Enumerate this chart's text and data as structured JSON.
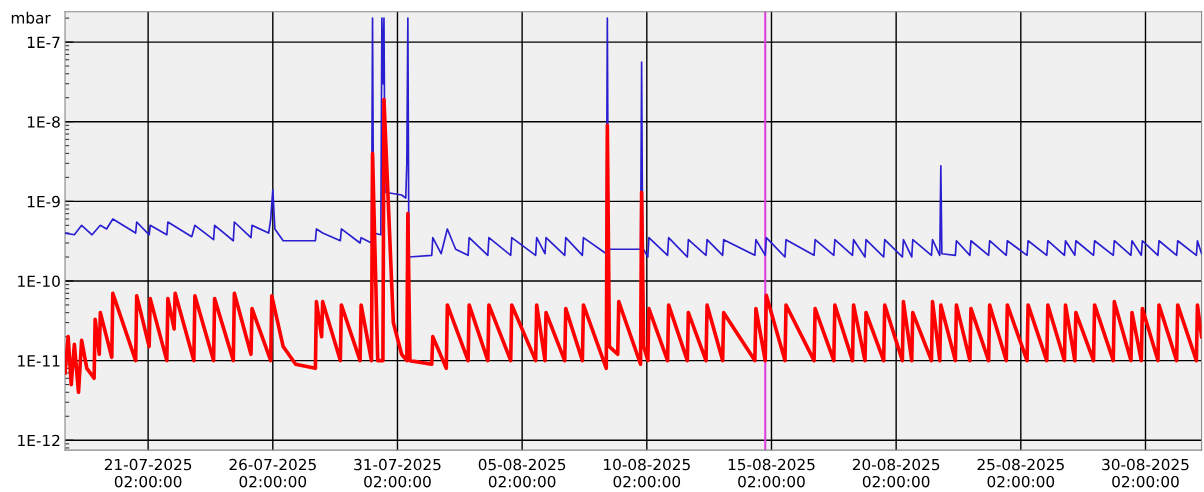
{
  "chart_data": {
    "type": "line",
    "ylabel": "mbar",
    "log": "y",
    "grid": true,
    "line_style": "solid",
    "xlim": [
      "2025-07-17T18:00",
      "2025-09-01T08:00"
    ],
    "xticks": [
      {
        "value": "2025-07-21T02:00",
        "label": "21-07-2025\n02:00:00"
      },
      {
        "value": "2025-07-26T02:00",
        "label": "26-07-2025\n02:00:00"
      },
      {
        "value": "2025-07-31T02:00",
        "label": "31-07-2025\n02:00:00"
      },
      {
        "value": "2025-08-05T02:00",
        "label": "05-08-2025\n02:00:00"
      },
      {
        "value": "2025-08-10T02:00",
        "label": "10-08-2025\n02:00:00"
      },
      {
        "value": "2025-08-15T02:00",
        "label": "15-08-2025\n02:00:00"
      },
      {
        "value": "2025-08-20T02:00",
        "label": "20-08-2025\n02:00:00"
      },
      {
        "value": "2025-08-25T02:00",
        "label": "25-08-2025\n02:00:00"
      },
      {
        "value": "2025-08-30T02:00",
        "label": "30-08-2025\n02:00:00"
      }
    ],
    "ylim": [
      7.5e-13,
      2.4e-07
    ],
    "yticks": [
      {
        "value": 1e-12,
        "label": "1E-12"
      },
      {
        "value": 1e-11,
        "label": "1E-11"
      },
      {
        "value": 1e-10,
        "label": "1E-10"
      },
      {
        "value": 1e-09,
        "label": "1E-9"
      },
      {
        "value": 1e-08,
        "label": "1E-8"
      },
      {
        "value": 1e-07,
        "label": "1E-7"
      }
    ],
    "ref_lines": [
      {
        "axis": "x",
        "value": "2025-08-14T20:00",
        "color": "#e040e0"
      }
    ],
    "series": [
      {
        "color": "#2a1fd0",
        "x": [
          "2025-07-17T18:00",
          "2025-07-18T03:00",
          "2025-07-18T10:00",
          "2025-07-18T20:00",
          "2025-07-19T04:00",
          "2025-07-19T10:00",
          "2025-07-19T16:00",
          "2025-07-20T14:00",
          "2025-07-20T15:00",
          "2025-07-21T03:00",
          "2025-07-21T04:00",
          "2025-07-21T20:00",
          "2025-07-21T21:00",
          "2025-07-22T20:00",
          "2025-07-22T23:00",
          "2025-07-23T17:00",
          "2025-07-23T18:00",
          "2025-07-24T12:00",
          "2025-07-24T13:00",
          "2025-07-25T05:00",
          "2025-07-25T06:00",
          "2025-07-25T22:00",
          "2025-07-26T00:00",
          "2025-07-26T02:00",
          "2025-07-26T04:00",
          "2025-07-26T12:00",
          "2025-07-27T19:00",
          "2025-07-27T20:00",
          "2025-07-28T02:00",
          "2025-07-28T19:00",
          "2025-07-28T20:00",
          "2025-07-29T14:00",
          "2025-07-29T15:00",
          "2025-07-30T01:00",
          "2025-07-30T02:00",
          "2025-07-30T03:00",
          "2025-07-30T10:00",
          "2025-07-30T11:00",
          "2025-07-30T12:00",
          "2025-07-30T13:00",
          "2025-07-30T14:00",
          "2025-07-31T06:00",
          "2025-07-31T10:00",
          "2025-07-31T11:00",
          "2025-07-31T12:00",
          "2025-07-31T13:00",
          "2025-08-01T11:00",
          "2025-08-01T12:00",
          "2025-08-01T20:00",
          "2025-08-02T02:00",
          "2025-08-02T10:00",
          "2025-08-02T22:00",
          "2025-08-02T23:00",
          "2025-08-03T17:00",
          "2025-08-03T18:00",
          "2025-08-04T15:00",
          "2025-08-04T16:00",
          "2025-08-05T15:00",
          "2025-08-05T16:00",
          "2025-08-06T00:00",
          "2025-08-06T01:00",
          "2025-08-06T19:00",
          "2025-08-06T20:00",
          "2025-08-07T12:00",
          "2025-08-07T13:00",
          "2025-08-08T11:00",
          "2025-08-08T12:00",
          "2025-08-08T13:00",
          "2025-08-08T23:00",
          "2025-08-09T20:00",
          "2025-08-09T21:00",
          "2025-08-09T22:00",
          "2025-08-10T03:00",
          "2025-08-10T04:00",
          "2025-08-10T22:00",
          "2025-08-10T23:00",
          "2025-08-11T17:00",
          "2025-08-11T18:00",
          "2025-08-12T11:00",
          "2025-08-12T12:00",
          "2025-08-13T03:00",
          "2025-08-13T04:00",
          "2025-08-14T10:00",
          "2025-08-14T11:00",
          "2025-08-14T20:00",
          "2025-08-14T21:00",
          "2025-08-15T15:00",
          "2025-08-15T16:00",
          "2025-08-16T19:00",
          "2025-08-16T20:00",
          "2025-08-17T14:00",
          "2025-08-17T15:00",
          "2025-08-18T08:00",
          "2025-08-18T09:00",
          "2025-08-18T20:00",
          "2025-08-18T21:00",
          "2025-08-19T14:00",
          "2025-08-19T15:00",
          "2025-08-20T08:00",
          "2025-08-20T09:00",
          "2025-08-20T17:00",
          "2025-08-20T18:00",
          "2025-08-21T12:00",
          "2025-08-21T13:00",
          "2025-08-21T20:00",
          "2025-08-21T21:00",
          "2025-08-21T22:00",
          "2025-08-22T11:00",
          "2025-08-22T12:00",
          "2025-08-23T01:00",
          "2025-08-23T02:00",
          "2025-08-23T19:00",
          "2025-08-23T20:00",
          "2025-08-24T12:00",
          "2025-08-24T13:00",
          "2025-08-25T08:00",
          "2025-08-25T09:00",
          "2025-08-26T03:00",
          "2025-08-26T04:00",
          "2025-08-26T20:00",
          "2025-08-26T21:00",
          "2025-08-27T06:00",
          "2025-08-27T07:00",
          "2025-08-28T00:00",
          "2025-08-28T01:00",
          "2025-08-28T19:00",
          "2025-08-28T20:00",
          "2025-08-29T12:00",
          "2025-08-29T13:00",
          "2025-08-29T22:00",
          "2025-08-29T23:00",
          "2025-08-30T14:00",
          "2025-08-30T15:00",
          "2025-08-31T08:00",
          "2025-08-31T09:00",
          "2025-09-01T03:00",
          "2025-09-01T04:00",
          "2025-09-01T08:00"
        ],
        "values": [
          4e-10,
          3.8e-10,
          5e-10,
          3.8e-10,
          5e-10,
          4.5e-10,
          6e-10,
          4e-10,
          5.5e-10,
          3.8e-10,
          5e-10,
          3.8e-10,
          5.5e-10,
          3.6e-10,
          5e-10,
          3.3e-10,
          5e-10,
          3.2e-10,
          5.5e-10,
          3.5e-10,
          5e-10,
          4e-10,
          6e-10,
          1.4e-09,
          4.5e-10,
          3.2e-10,
          3.2e-10,
          4.5e-10,
          4e-10,
          3.2e-10,
          4.5e-10,
          3e-10,
          3.5e-10,
          3e-10,
          2e-07,
          4e-10,
          3.8e-10,
          2e-07,
          3e-08,
          2e-07,
          1.3e-09,
          1.2e-09,
          1.1e-09,
          3e-09,
          2e-07,
          2e-10,
          2.1e-10,
          3.5e-10,
          2.2e-10,
          4.5e-10,
          2.5e-10,
          2.1e-10,
          3.5e-10,
          2.1e-10,
          3.5e-10,
          2.1e-10,
          3.5e-10,
          2.1e-10,
          3.5e-10,
          2.2e-10,
          3.5e-10,
          2.1e-10,
          3.5e-10,
          2.1e-10,
          3.5e-10,
          2.2e-10,
          2e-07,
          2.5e-10,
          2.5e-10,
          2.5e-10,
          5.6e-08,
          2.6e-10,
          2e-10,
          3.5e-10,
          2.1e-10,
          3.5e-10,
          2e-10,
          3.3e-10,
          2.1e-10,
          3.3e-10,
          2.1e-10,
          3.3e-10,
          2.1e-10,
          3.3e-10,
          2.1e-10,
          3.5e-10,
          2e-10,
          3.3e-10,
          2.1e-10,
          3.3e-10,
          2.1e-10,
          3.3e-10,
          2.1e-10,
          3.3e-10,
          2e-10,
          3.3e-10,
          2e-10,
          3.3e-10,
          2e-10,
          3.3e-10,
          2e-10,
          3.3e-10,
          2.1e-10,
          3.3e-10,
          2.1e-10,
          2.8e-09,
          2.2e-10,
          2.1e-10,
          3.2e-10,
          2.1e-10,
          3.2e-10,
          2.1e-10,
          3.2e-10,
          2.1e-10,
          3.2e-10,
          2.1e-10,
          3.2e-10,
          2.1e-10,
          3.2e-10,
          2.1e-10,
          3.2e-10,
          2.1e-10,
          3.2e-10,
          2.1e-10,
          3.2e-10,
          2.1e-10,
          3.2e-10,
          2.1e-10,
          3.2e-10,
          2.1e-10,
          3.2e-10,
          2.1e-10,
          3.2e-10,
          2.1e-10,
          3.2e-10,
          2.1e-10,
          3.2e-10,
          2.2e-10
        ]
      },
      {
        "color": "#ff0000",
        "x": [
          "2025-07-17T18:00",
          "2025-07-17T21:00",
          "2025-07-18T00:00",
          "2025-07-18T03:00",
          "2025-07-18T07:00",
          "2025-07-18T10:00",
          "2025-07-18T15:00",
          "2025-07-18T22:00",
          "2025-07-18T23:00",
          "2025-07-19T03:00",
          "2025-07-19T04:00",
          "2025-07-19T15:00",
          "2025-07-19T16:00",
          "2025-07-20T14:00",
          "2025-07-20T15:00",
          "2025-07-21T03:00",
          "2025-07-21T04:00",
          "2025-07-21T20:00",
          "2025-07-21T21:00",
          "2025-07-22T03:00",
          "2025-07-22T04:00",
          "2025-07-22T22:00",
          "2025-07-22T23:00",
          "2025-07-23T17:00",
          "2025-07-23T18:00",
          "2025-07-24T12:00",
          "2025-07-24T13:00",
          "2025-07-25T05:00",
          "2025-07-25T06:00",
          "2025-07-26T00:00",
          "2025-07-26T01:00",
          "2025-07-26T12:00",
          "2025-07-27T00:00",
          "2025-07-27T19:00",
          "2025-07-27T20:00",
          "2025-07-28T01:00",
          "2025-07-28T02:00",
          "2025-07-28T19:00",
          "2025-07-28T20:00",
          "2025-07-29T14:00",
          "2025-07-29T15:00",
          "2025-07-30T01:00",
          "2025-07-30T02:00",
          "2025-07-30T07:00",
          "2025-07-30T12:00",
          "2025-07-30T13:00",
          "2025-07-30T22:00",
          "2025-07-31T06:00",
          "2025-07-31T11:00",
          "2025-07-31T12:00",
          "2025-07-31T14:00",
          "2025-08-01T11:00",
          "2025-08-01T12:00",
          "2025-08-02T01:00",
          "2025-08-02T02:00",
          "2025-08-02T22:00",
          "2025-08-02T23:00",
          "2025-08-03T17:00",
          "2025-08-03T18:00",
          "2025-08-04T15:00",
          "2025-08-04T16:00",
          "2025-08-05T15:00",
          "2025-08-05T16:00",
          "2025-08-06T00:00",
          "2025-08-06T01:00",
          "2025-08-06T19:00",
          "2025-08-06T20:00",
          "2025-08-07T12:00",
          "2025-08-07T13:00",
          "2025-08-08T11:00",
          "2025-08-08T12:00",
          "2025-08-08T14:00",
          "2025-08-08T22:00",
          "2025-08-08T23:00",
          "2025-08-09T20:00",
          "2025-08-09T21:00",
          "2025-08-09T23:00",
          "2025-08-10T03:00",
          "2025-08-10T04:00",
          "2025-08-10T22:00",
          "2025-08-10T23:00",
          "2025-08-11T17:00",
          "2025-08-11T18:00",
          "2025-08-12T11:00",
          "2025-08-12T12:00",
          "2025-08-13T03:00",
          "2025-08-13T04:00",
          "2025-08-14T10:00",
          "2025-08-14T11:00",
          "2025-08-14T20:00",
          "2025-08-14T21:00",
          "2025-08-15T15:00",
          "2025-08-15T16:00",
          "2025-08-16T19:00",
          "2025-08-16T20:00",
          "2025-08-17T14:00",
          "2025-08-17T15:00",
          "2025-08-18T08:00",
          "2025-08-18T09:00",
          "2025-08-18T20:00",
          "2025-08-18T21:00",
          "2025-08-19T14:00",
          "2025-08-19T15:00",
          "2025-08-20T08:00",
          "2025-08-20T09:00",
          "2025-08-20T17:00",
          "2025-08-20T18:00",
          "2025-08-21T12:00",
          "2025-08-21T13:00",
          "2025-08-21T20:00",
          "2025-08-21T21:00",
          "2025-08-22T11:00",
          "2025-08-22T12:00",
          "2025-08-23T01:00",
          "2025-08-23T02:00",
          "2025-08-23T19:00",
          "2025-08-23T20:00",
          "2025-08-24T12:00",
          "2025-08-24T13:00",
          "2025-08-25T08:00",
          "2025-08-25T09:00",
          "2025-08-26T03:00",
          "2025-08-26T04:00",
          "2025-08-26T20:00",
          "2025-08-26T21:00",
          "2025-08-27T06:00",
          "2025-08-27T07:00",
          "2025-08-28T00:00",
          "2025-08-28T01:00",
          "2025-08-28T19:00",
          "2025-08-28T20:00",
          "2025-08-29T12:00",
          "2025-08-29T13:00",
          "2025-08-29T22:00",
          "2025-08-29T23:00",
          "2025-08-30T14:00",
          "2025-08-30T15:00",
          "2025-08-31T08:00",
          "2025-08-31T09:00",
          "2025-09-01T03:00",
          "2025-09-01T04:00",
          "2025-09-01T08:00"
        ],
        "values": [
          7e-12,
          2e-11,
          5e-12,
          1.6e-11,
          4e-12,
          1.8e-11,
          8e-12,
          6e-12,
          3.3e-11,
          1.2e-11,
          4e-11,
          1.1e-11,
          7e-11,
          1e-11,
          6.5e-11,
          1.5e-11,
          6e-11,
          1e-11,
          6e-11,
          2.5e-11,
          7e-11,
          1e-11,
          6.5e-11,
          1e-11,
          6e-11,
          1e-11,
          7e-11,
          1.2e-11,
          4.5e-11,
          1e-11,
          6.5e-11,
          1.5e-11,
          9e-12,
          8e-12,
          5.5e-11,
          2e-11,
          5.5e-11,
          1e-11,
          5e-11,
          1e-11,
          5e-11,
          1e-11,
          4e-09,
          1e-11,
          1e-11,
          1.9e-08,
          3e-11,
          1.2e-11,
          1e-11,
          7e-10,
          1e-11,
          9e-12,
          2e-11,
          8e-12,
          5e-11,
          1e-11,
          5e-11,
          1e-11,
          5e-11,
          1e-11,
          5e-11,
          1e-11,
          5e-11,
          1e-11,
          4e-11,
          1e-11,
          4.5e-11,
          1e-11,
          5e-11,
          8e-12,
          9e-09,
          1.5e-11,
          1.2e-11,
          5.5e-11,
          9e-12,
          1.3e-09,
          1.5e-11,
          1e-11,
          4.5e-11,
          1e-11,
          5e-11,
          1e-11,
          4e-11,
          1e-11,
          5e-11,
          1e-11,
          4e-11,
          1e-11,
          4.5e-11,
          1e-11,
          6.6e-11,
          1e-11,
          5e-11,
          1e-11,
          4.5e-11,
          1e-11,
          5e-11,
          1e-11,
          5e-11,
          1e-11,
          4e-11,
          1e-11,
          5e-11,
          1e-11,
          5.5e-11,
          1e-11,
          4e-11,
          1e-11,
          5.5e-11,
          1e-11,
          5e-11,
          1e-11,
          5e-11,
          1e-11,
          4.5e-11,
          1e-11,
          5e-11,
          1e-11,
          5e-11,
          1e-11,
          5e-11,
          1e-11,
          5e-11,
          1e-11,
          5e-11,
          1e-11,
          4e-11,
          1e-11,
          5e-11,
          1e-11,
          5.5e-11,
          1e-11,
          4e-11,
          1e-11,
          4.5e-11,
          1e-11,
          5e-11,
          1e-11,
          5e-11,
          1e-11,
          5e-11,
          2e-11
        ]
      }
    ]
  }
}
